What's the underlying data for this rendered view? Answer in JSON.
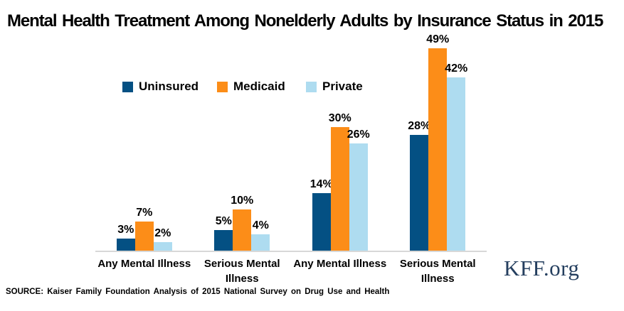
{
  "title": "Mental Health Treatment Among Nonelderly Adults by Insurance Status in 2015",
  "chart_data": {
    "type": "bar",
    "categories": [
      "Any Mental Illness",
      "Serious Mental Illness",
      "Any Mental Illness",
      "Serious Mental Illness"
    ],
    "series": [
      {
        "name": "Uninsured",
        "color": "#045083",
        "values": [
          3,
          5,
          14,
          28
        ]
      },
      {
        "name": "Medicaid",
        "color": "#fc8d18",
        "values": [
          7,
          10,
          30,
          49
        ]
      },
      {
        "name": "Private",
        "color": "#aedcf0",
        "values": [
          2,
          4,
          26,
          42
        ]
      }
    ],
    "value_suffix": "%",
    "ylim": [
      0,
      52
    ],
    "grid": false,
    "legend_position": "top",
    "data_labels": true,
    "axis_line_color": "#d8d8d8"
  },
  "source": "SOURCE:  Kaiser Family Foundation  Analysis  of 2015 National Survey on Drug Use and Health",
  "branding": {
    "logo_text": "KFF.org",
    "logo_color": "#253f5f"
  }
}
